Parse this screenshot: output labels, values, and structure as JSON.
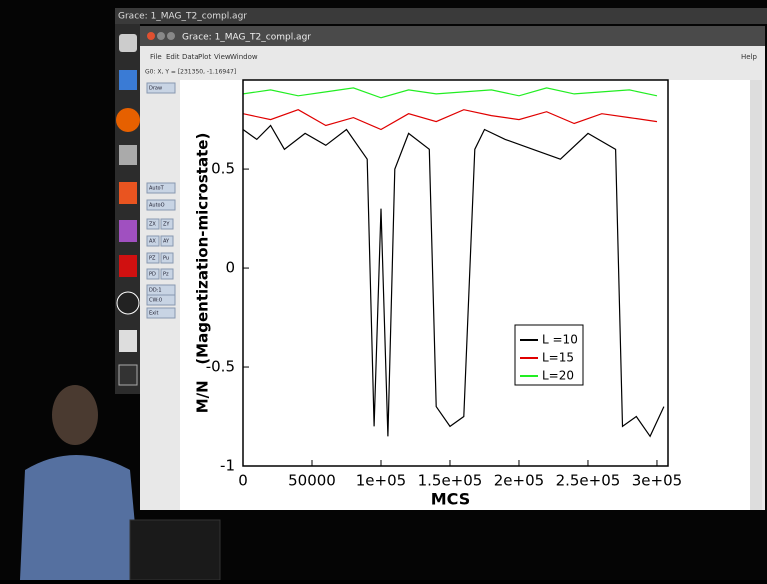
{
  "os_bar": {
    "title": "Grace: 1_MAG_T2_compl.agr"
  },
  "window": {
    "title": "Grace: 1_MAG_T2_compl.agr",
    "menu": [
      "File",
      "Edit",
      "Data",
      "Plot",
      "View",
      "Window"
    ],
    "help": "Help",
    "status": "G0: X, Y = [231350, -1.16947]",
    "tools": [
      "Draw",
      "AutoT",
      "AutoO",
      "ZX",
      "ZY",
      "AX",
      "AY",
      "PZ",
      "Pu",
      "PD",
      "Pz",
      "DD:1",
      "CW:0",
      "Exit"
    ]
  },
  "chart_data": {
    "type": "line",
    "xlabel": "MCS",
    "ylabel": "M/N   (Magentization-microstate)",
    "xlim": [
      0,
      308000
    ],
    "ylim": [
      -1,
      0.95
    ],
    "xticks": [
      0,
      50000,
      {
        "value": 100000,
        "label": "1e+05"
      },
      {
        "value": 150000,
        "label": "1.5e+05"
      },
      {
        "value": 200000,
        "label": "2e+05"
      },
      {
        "value": 250000,
        "label": "2.5e+05"
      },
      {
        "value": 300000,
        "label": "3e+05"
      }
    ],
    "yticks": [
      -1,
      -0.5,
      0,
      0.5
    ],
    "legend": "center-right",
    "series": [
      {
        "name": "L =10",
        "color": "#000000",
        "x": [
          0,
          10000,
          20000,
          30000,
          45000,
          60000,
          75000,
          90000,
          95000,
          100000,
          105000,
          110000,
          120000,
          135000,
          140000,
          150000,
          160000,
          168000,
          175000,
          190000,
          210000,
          230000,
          250000,
          270000,
          275000,
          285000,
          295000,
          305000
        ],
        "values": [
          0.7,
          0.65,
          0.72,
          0.6,
          0.68,
          0.62,
          0.7,
          0.55,
          -0.8,
          0.3,
          -0.85,
          0.5,
          0.68,
          0.6,
          -0.7,
          -0.8,
          -0.75,
          0.6,
          0.7,
          0.65,
          0.6,
          0.55,
          0.68,
          0.6,
          -0.8,
          -0.75,
          -0.85,
          -0.7
        ]
      },
      {
        "name": "L=15",
        "color": "#e00000",
        "x": [
          0,
          20000,
          40000,
          60000,
          80000,
          100000,
          120000,
          140000,
          160000,
          180000,
          200000,
          220000,
          240000,
          260000,
          280000,
          300000
        ],
        "values": [
          0.78,
          0.75,
          0.8,
          0.72,
          0.76,
          0.7,
          0.78,
          0.74,
          0.8,
          0.77,
          0.75,
          0.79,
          0.73,
          0.78,
          0.76,
          0.74
        ]
      },
      {
        "name": "L=20",
        "color": "#22ee22",
        "x": [
          0,
          20000,
          40000,
          60000,
          80000,
          100000,
          120000,
          140000,
          160000,
          180000,
          200000,
          220000,
          240000,
          260000,
          280000,
          300000
        ],
        "values": [
          0.88,
          0.9,
          0.87,
          0.89,
          0.91,
          0.86,
          0.9,
          0.88,
          0.89,
          0.9,
          0.87,
          0.91,
          0.88,
          0.89,
          0.9,
          0.87
        ]
      }
    ]
  }
}
